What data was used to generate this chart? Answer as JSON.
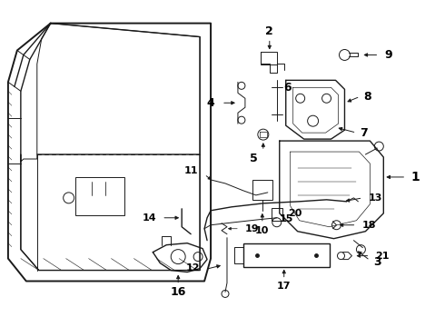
{
  "bg_color": "#ffffff",
  "line_color": "#1a1a1a",
  "text_color": "#000000",
  "figsize": [
    4.9,
    3.6
  ],
  "dpi": 100,
  "font_size": 8,
  "font_size_large": 9
}
